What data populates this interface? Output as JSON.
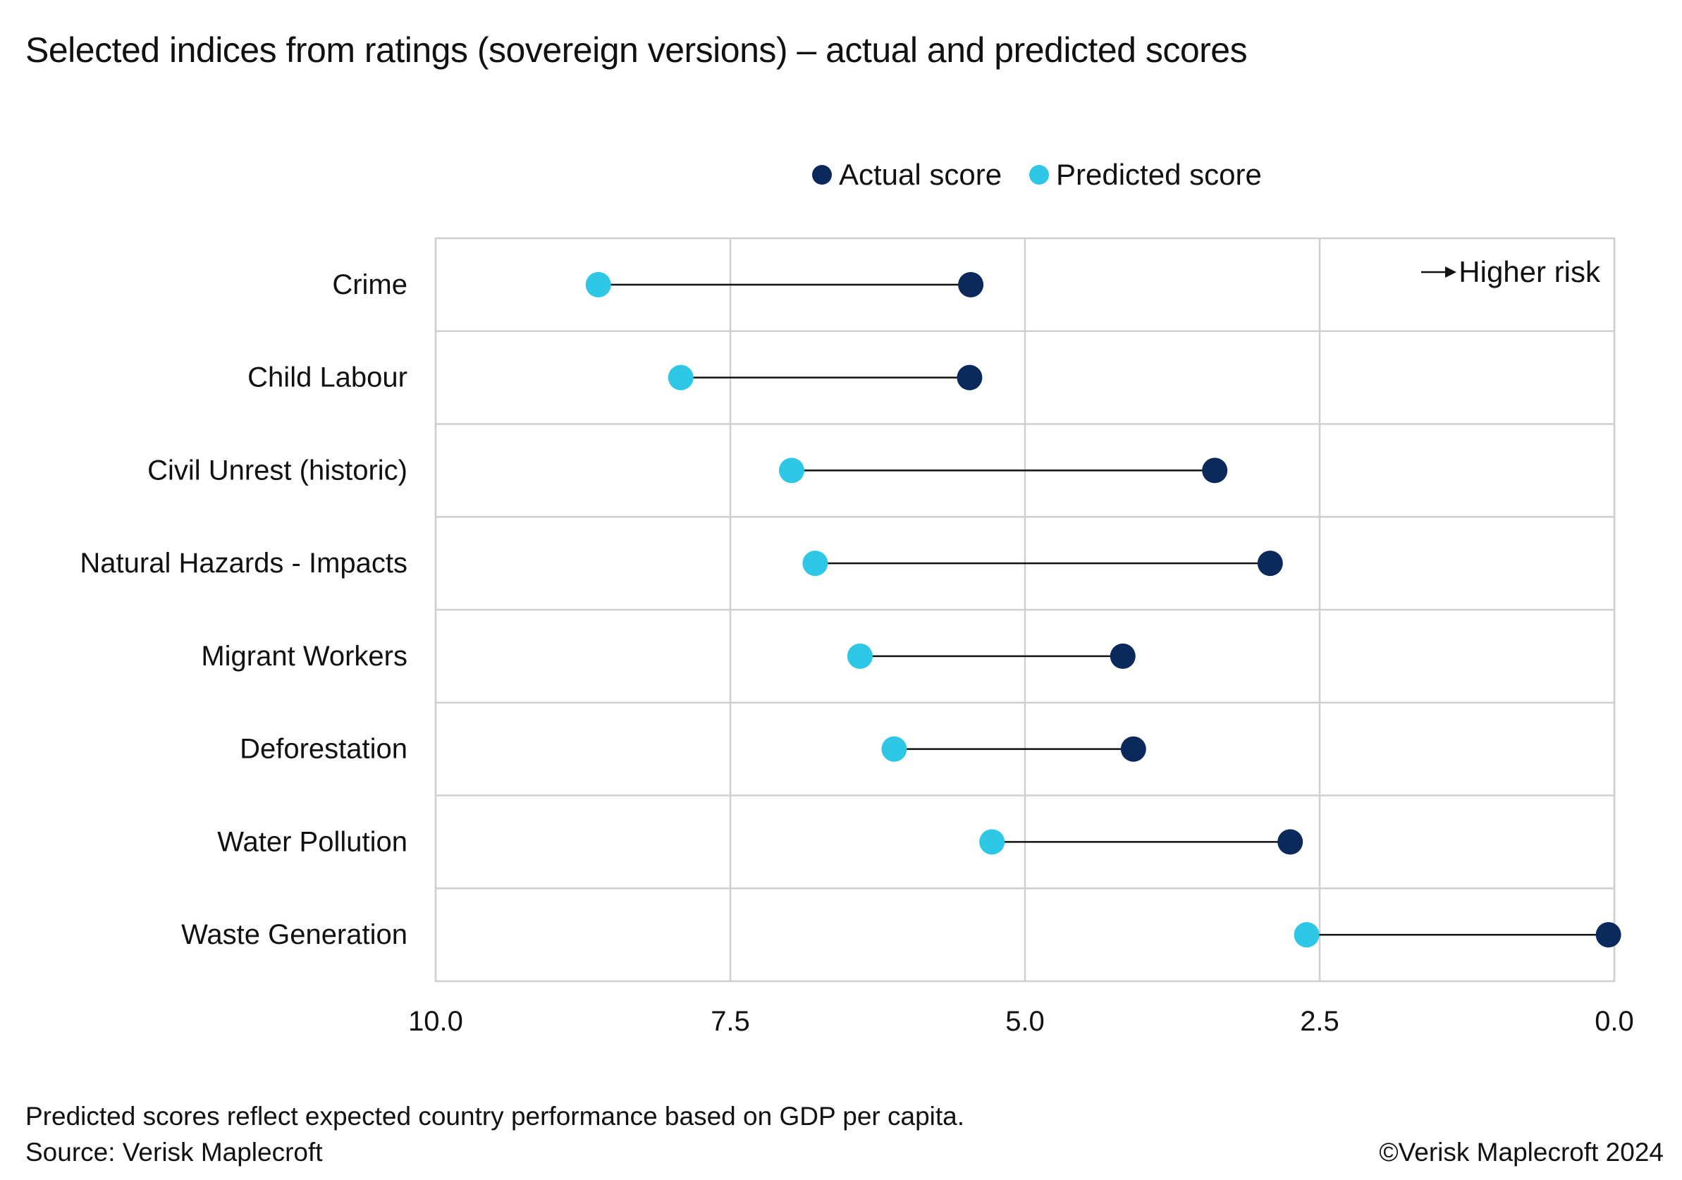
{
  "title": "Selected indices from ratings (sovereign versions) – actual and predicted scores",
  "footer": {
    "note": "Predicted scores reflect expected country performance based on GDP per capita.",
    "source": "Source: Verisk Maplecroft",
    "copyright": "©Verisk Maplecroft 2024"
  },
  "chart_data": {
    "type": "dot-plot",
    "annotation": "Higher risk",
    "categories": [
      "Crime",
      "Child Labour",
      "Civil Unrest (historic)",
      "Natural Hazards - Impacts",
      "Migrant Workers",
      "Deforestation",
      "Water Pollution",
      "Waste Generation"
    ],
    "series": [
      {
        "name": "Actual score",
        "color": "#0b2a5b",
        "values": [
          5.46,
          5.47,
          3.39,
          2.92,
          4.17,
          4.08,
          2.75,
          0.05
        ]
      },
      {
        "name": "Predicted score",
        "color": "#2ec7e6",
        "values": [
          8.62,
          7.92,
          6.98,
          6.78,
          6.4,
          6.11,
          5.28,
          2.61
        ]
      }
    ],
    "xlim": [
      10.0,
      0.0
    ],
    "reversed_x": true,
    "x_ticks": [
      "10.0",
      "7.5",
      "5.0",
      "2.5",
      "0.0"
    ],
    "connector_color": "#111111",
    "grid": true,
    "legend_position": "top"
  }
}
